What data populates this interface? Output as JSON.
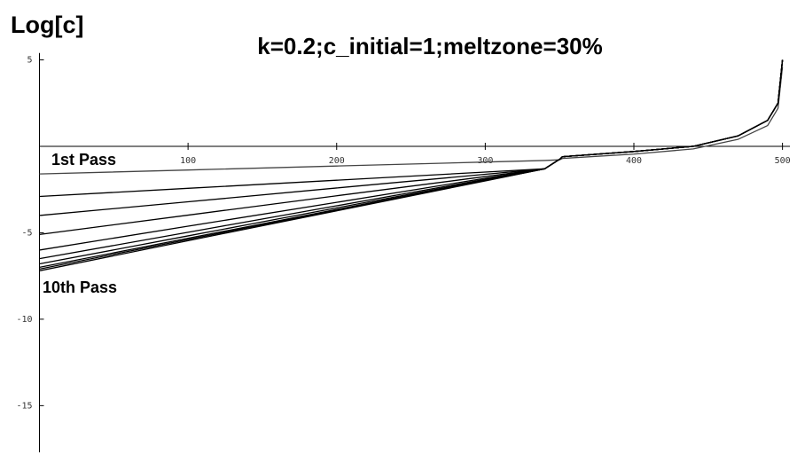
{
  "chart_data": {
    "type": "line",
    "title": "k=0.2;c_initial=1;meltzone=30%",
    "ylabel": "Log[c]",
    "annotations": [
      "1st Pass",
      "10th Pass"
    ],
    "x": [
      0,
      100,
      200,
      300,
      340,
      350,
      352,
      400,
      440,
      470,
      490,
      497,
      500
    ],
    "series": [
      {
        "color": "#444444",
        "values": [
          -1.6,
          -1.37,
          -1.14,
          -0.91,
          -0.82,
          -0.78,
          -0.7,
          -0.45,
          -0.15,
          0.4,
          1.2,
          2.2,
          4.6
        ]
      },
      {
        "color": "#000000",
        "values": [
          -2.9,
          -2.43,
          -1.96,
          -1.49,
          -1.3,
          -0.75,
          -0.6,
          -0.3,
          0,
          0.6,
          1.5,
          2.5,
          5
        ]
      },
      {
        "color": "#000000",
        "values": [
          -4.0,
          -3.21,
          -2.41,
          -1.62,
          -1.3,
          -0.75,
          -0.6,
          -0.3,
          0,
          0.6,
          1.5,
          2.5,
          5
        ]
      },
      {
        "color": "#000000",
        "values": [
          -5.1,
          -3.98,
          -2.86,
          -1.75,
          -1.3,
          -0.75,
          -0.6,
          -0.3,
          0,
          0.6,
          1.5,
          2.5,
          5
        ]
      },
      {
        "color": "#000000",
        "values": [
          -6.0,
          -4.62,
          -3.24,
          -1.85,
          -1.3,
          -0.75,
          -0.6,
          -0.3,
          0,
          0.6,
          1.5,
          2.5,
          5
        ]
      },
      {
        "color": "#000000",
        "values": [
          -6.5,
          -4.97,
          -3.44,
          -1.91,
          -1.3,
          -0.75,
          -0.6,
          -0.3,
          0,
          0.6,
          1.5,
          2.5,
          5
        ]
      },
      {
        "color": "#000000",
        "values": [
          -6.8,
          -5.18,
          -3.56,
          -1.95,
          -1.3,
          -0.75,
          -0.6,
          -0.3,
          0,
          0.6,
          1.5,
          2.5,
          5
        ]
      },
      {
        "color": "#000000",
        "values": [
          -7.0,
          -5.32,
          -3.65,
          -1.97,
          -1.3,
          -0.75,
          -0.6,
          -0.3,
          0,
          0.6,
          1.5,
          2.5,
          5
        ]
      },
      {
        "color": "#000000",
        "values": [
          -7.1,
          -5.39,
          -3.69,
          -1.98,
          -1.3,
          -0.75,
          -0.6,
          -0.3,
          0,
          0.6,
          1.5,
          2.5,
          5
        ]
      },
      {
        "color": "#000000",
        "values": [
          -7.2,
          -5.46,
          -3.73,
          -2.0,
          -1.3,
          -0.75,
          -0.6,
          -0.3,
          0,
          0.6,
          1.5,
          2.5,
          5
        ]
      }
    ],
    "xlim": [
      0,
      505
    ],
    "ylim": [
      -17.7,
      5.4
    ],
    "xticks": [
      100,
      200,
      300,
      400,
      500
    ],
    "yticks": [
      -15,
      -10,
      -5,
      5
    ]
  }
}
